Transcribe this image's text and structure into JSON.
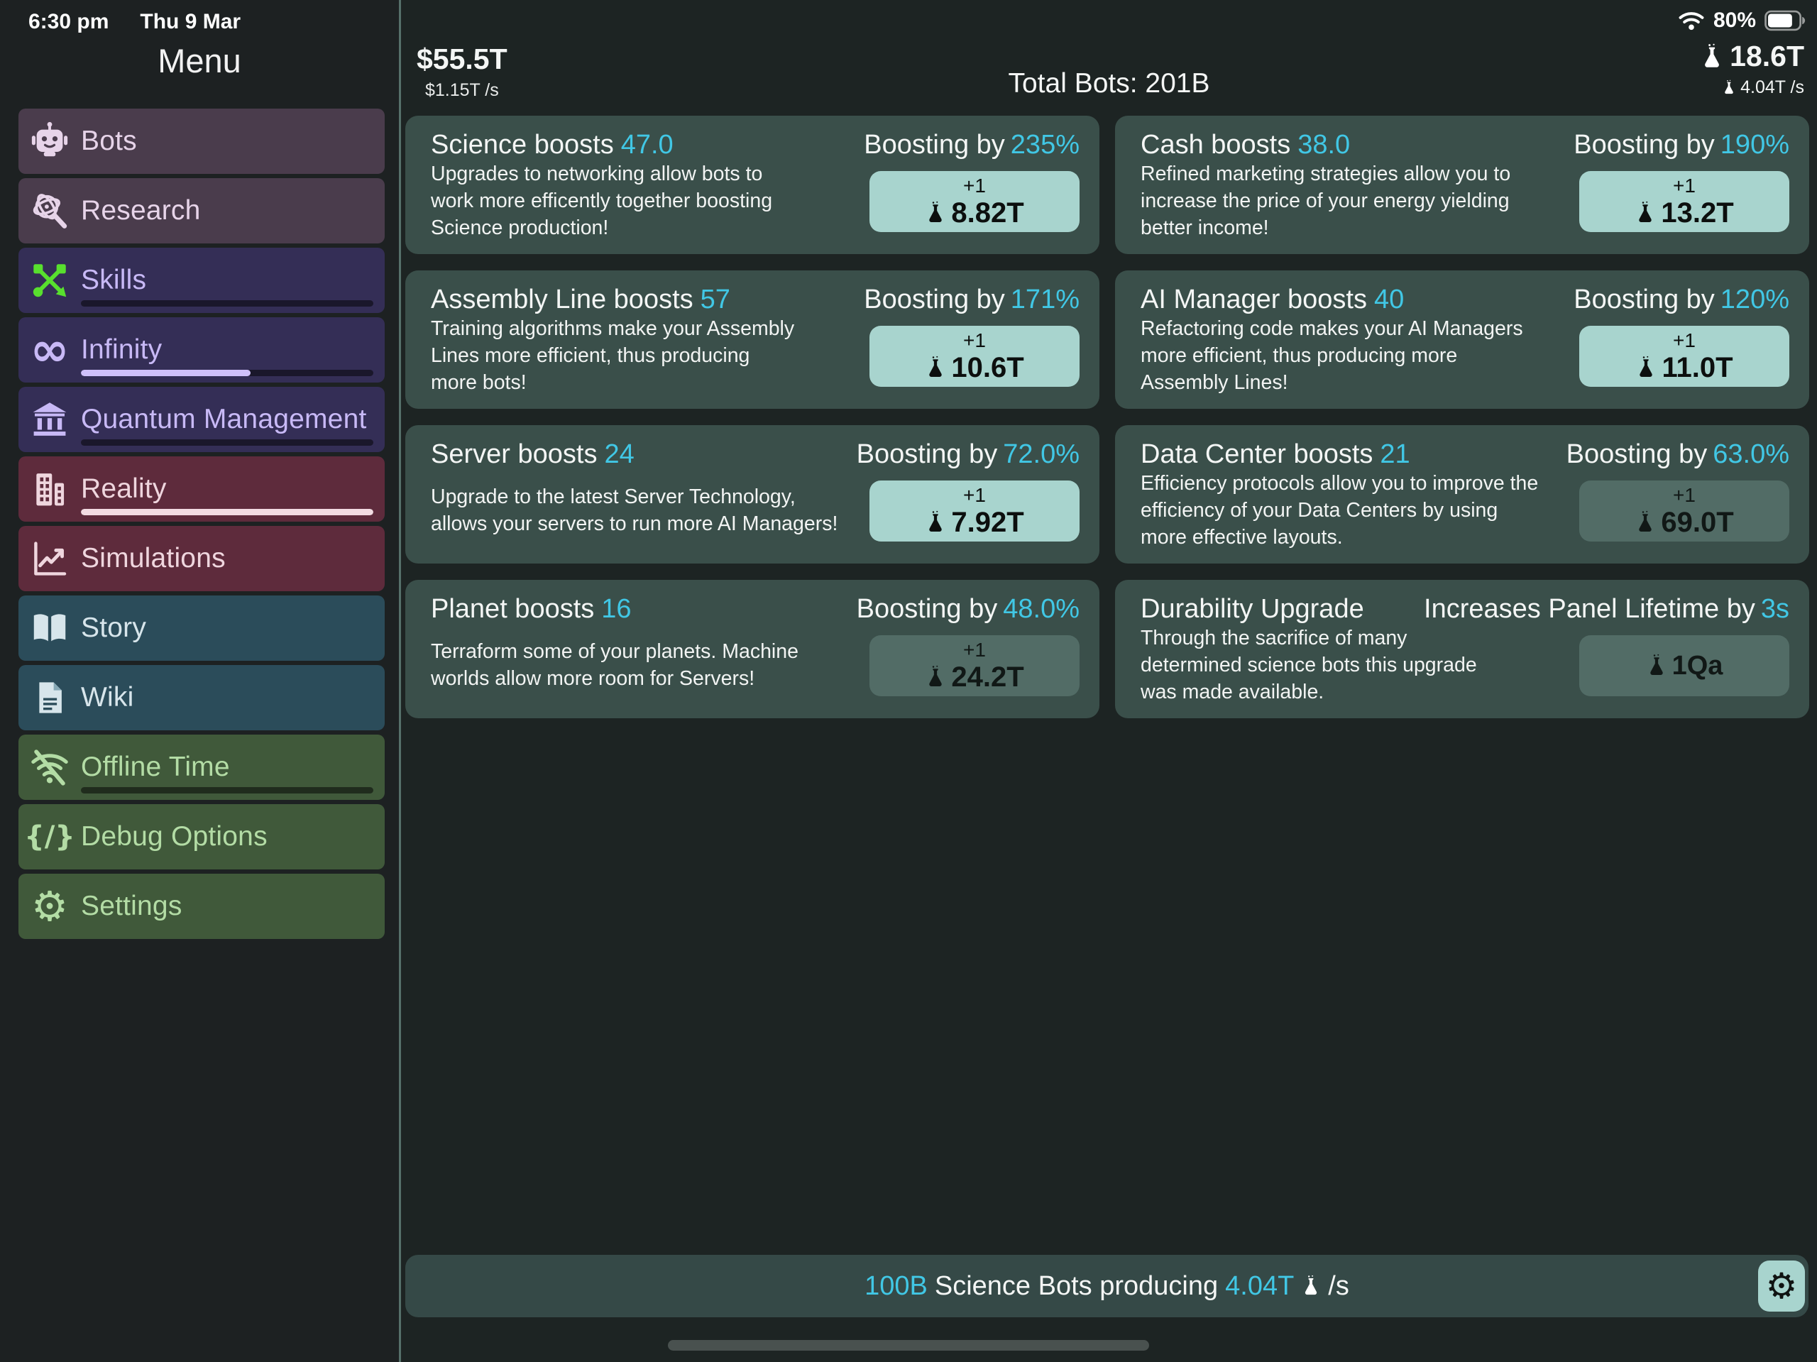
{
  "status_bar": {
    "time": "6:30 pm",
    "date": "Thu 9 Mar",
    "battery_percent": "80%"
  },
  "sidebar": {
    "title": "Menu",
    "items": [
      {
        "label": "Bots",
        "icon": "robot-icon",
        "theme": "plum",
        "progress_pct": null
      },
      {
        "label": "Research",
        "icon": "research-icon",
        "theme": "plum",
        "progress_pct": null
      },
      {
        "label": "Skills",
        "icon": "skills-icon",
        "theme": "indigo",
        "progress_pct": 0
      },
      {
        "label": "Infinity",
        "icon": "infinity-icon",
        "theme": "indigo",
        "progress_pct": 58
      },
      {
        "label": "Quantum Management",
        "icon": "bank-icon",
        "theme": "indigo",
        "progress_pct": 0
      },
      {
        "label": "Reality",
        "icon": "buildings-icon",
        "theme": "maroon",
        "progress_pct": 100
      },
      {
        "label": "Simulations",
        "icon": "line-chart-icon",
        "theme": "maroon",
        "progress_pct": null
      },
      {
        "label": "Story",
        "icon": "open-book-icon",
        "theme": "blue",
        "progress_pct": null
      },
      {
        "label": "Wiki",
        "icon": "document-icon",
        "theme": "blue",
        "progress_pct": null
      },
      {
        "label": "Offline Time",
        "icon": "wifi-off-icon",
        "theme": "green",
        "progress_pct": 0
      },
      {
        "label": "Debug Options",
        "icon": "code-braces-icon",
        "theme": "green",
        "progress_pct": null
      },
      {
        "label": "Settings",
        "icon": "gear-icon",
        "theme": "green",
        "progress_pct": null
      }
    ]
  },
  "header": {
    "cash": "$55.5T",
    "cash_rate": "$1.15T /s",
    "total_bots": "Total Bots: 201B",
    "science": "18.6T",
    "science_rate": "4.04T /s"
  },
  "cards": [
    {
      "title": "Science boosts",
      "count": "47.0",
      "boost_label": "Boosting by",
      "boost_value": "235%",
      "description": "Upgrades to networking allow bots to\nwork more efficently together boosting\nScience production!",
      "button_plus": "+1",
      "button_cost": "8.82T",
      "enabled": true
    },
    {
      "title": "Cash boosts",
      "count": "38.0",
      "boost_label": "Boosting by",
      "boost_value": "190%",
      "description": "Refined marketing strategies allow you to\nincrease the price of your energy yielding\nbetter income!",
      "button_plus": "+1",
      "button_cost": "13.2T",
      "enabled": true
    },
    {
      "title": "Assembly Line boosts",
      "count": "57",
      "boost_label": "Boosting by",
      "boost_value": "171%",
      "description": "Training algorithms make your Assembly\nLines more efficient, thus producing\nmore bots!",
      "button_plus": "+1",
      "button_cost": "10.6T",
      "enabled": true
    },
    {
      "title": "AI Manager boosts",
      "count": "40",
      "boost_label": "Boosting by",
      "boost_value": "120%",
      "description": "Refactoring code makes your AI Managers\nmore efficient, thus producing more\nAssembly Lines!",
      "button_plus": "+1",
      "button_cost": "11.0T",
      "enabled": true
    },
    {
      "title": "Server boosts",
      "count": "24",
      "boost_label": "Boosting by",
      "boost_value": "72.0%",
      "description": "Upgrade to the latest Server Technology,\nallows your servers to run more AI Managers!",
      "button_plus": "+1",
      "button_cost": "7.92T",
      "enabled": true
    },
    {
      "title": "Data Center boosts",
      "count": "21",
      "boost_label": "Boosting by",
      "boost_value": "63.0%",
      "description": "Efficiency protocols allow you to improve the\nefficiency of your Data Centers by using\nmore effective layouts.",
      "button_plus": "+1",
      "button_cost": "69.0T",
      "enabled": false
    },
    {
      "title": "Planet boosts",
      "count": "16",
      "boost_label": "Boosting by",
      "boost_value": "48.0%",
      "description": "Terraform some of your planets. Machine\nworlds allow more room for Servers!",
      "button_plus": "+1",
      "button_cost": "24.2T",
      "enabled": false
    },
    {
      "title": "Durability Upgrade",
      "count": "",
      "boost_label": "Increases Panel Lifetime by",
      "boost_value": "3s",
      "description": "Through the sacrifice of many\ndetermined science bots this upgrade\nwas made available.",
      "button_plus": "",
      "button_cost": "1Qa",
      "enabled": false
    }
  ],
  "footer": {
    "bots_count": "100B",
    "text": "Science Bots producing",
    "rate": "4.04T",
    "unit": "/s"
  },
  "colors": {
    "accent_cyan": "#41c7e5",
    "buy_button": "#a8d4ce",
    "card_bg": "#3a4f4a",
    "sidebar_bg": "#1d2122",
    "main_bg": "#1d2423"
  }
}
